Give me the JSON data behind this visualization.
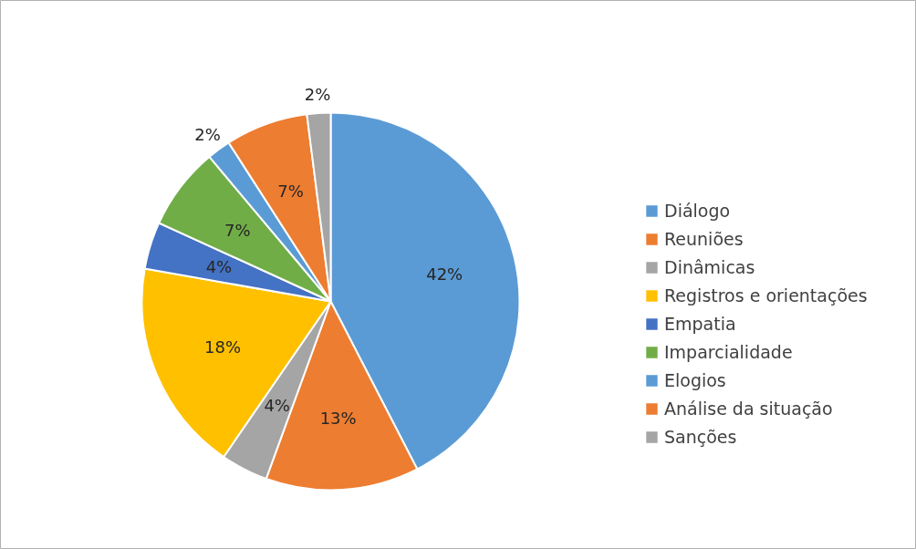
{
  "chart_data": {
    "type": "pie",
    "categories": [
      "Diálogo",
      "Reuniões",
      "Dinâmicas",
      "Registros e orientações",
      "Empatia",
      "Imparcialidade",
      "Elogios",
      "Análise da situação",
      "Sanções"
    ],
    "values": [
      42,
      13,
      4,
      18,
      4,
      7,
      2,
      7,
      2
    ],
    "colors": [
      "#5b9bd5",
      "#ed7d31",
      "#a5a5a5",
      "#ffc000",
      "#4472c4",
      "#70ad47",
      "#5b9bd5",
      "#ed7d31",
      "#a5a5a5"
    ],
    "value_labels": [
      "42%",
      "13%",
      "4%",
      "18%",
      "4%",
      "7%",
      "2%",
      "7%",
      "2%"
    ],
    "legend": "right"
  }
}
